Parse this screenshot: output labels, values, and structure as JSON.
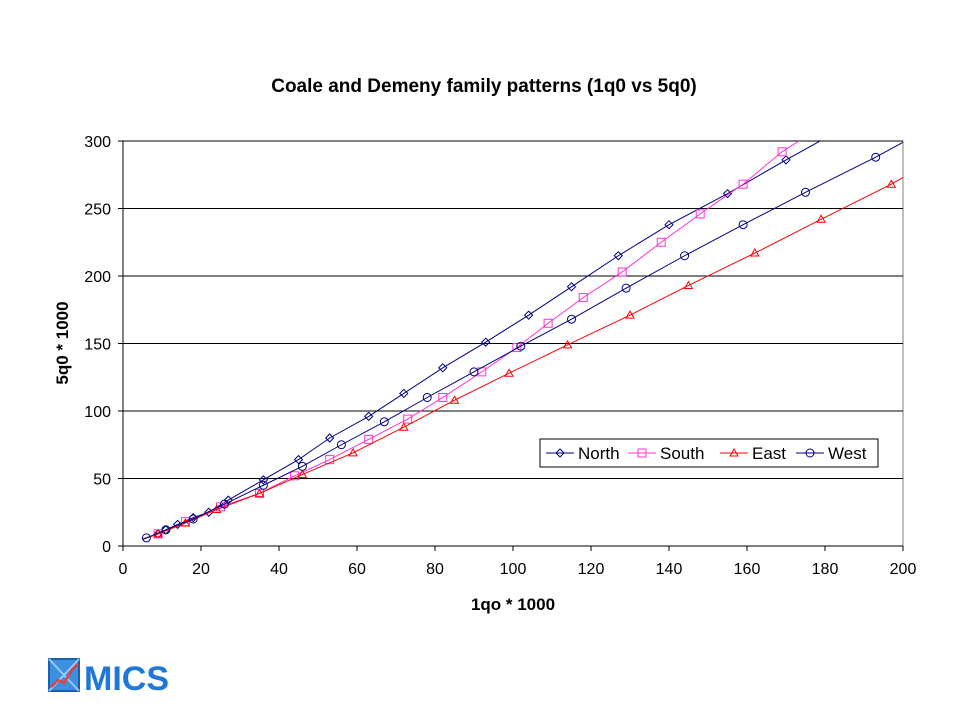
{
  "chart_data": {
    "type": "line",
    "title": "Coale and Demeny family patterns (1q0 vs 5q0)",
    "xlabel": "1qo  * 1000",
    "ylabel": "5q0 * 1000",
    "xlim": [
      0,
      200
    ],
    "ylim": [
      0,
      300
    ],
    "xticks": [
      "0",
      "20",
      "40",
      "60",
      "80",
      "100",
      "120",
      "140",
      "160",
      "180",
      "200"
    ],
    "yticks": [
      "0",
      "50",
      "100",
      "150",
      "200",
      "250",
      "300"
    ],
    "grid": "horizontal",
    "legend_position": "bottom-right",
    "series": [
      {
        "name": "North",
        "color": "#000080",
        "marker": "diamond",
        "x": [
          9,
          11,
          14,
          18,
          22,
          27,
          36,
          45,
          53,
          63,
          72,
          82,
          93,
          104,
          115,
          127,
          140,
          155,
          170
        ],
        "y": [
          9,
          12,
          16,
          21,
          25,
          34,
          49,
          64,
          80,
          96,
          113,
          132,
          151,
          171,
          192,
          215,
          238,
          261,
          286
        ],
        "line_x": [
          5,
          170,
          180
        ],
        "line_y": [
          5,
          286,
          302
        ]
      },
      {
        "name": "South",
        "color": "#ff33cc",
        "marker": "square",
        "x": [
          9,
          16,
          25,
          35,
          44,
          53,
          63,
          73,
          82,
          92,
          101,
          109,
          118,
          128,
          138,
          148,
          159,
          169
        ],
        "y": [
          9,
          18,
          29,
          39,
          52,
          64,
          79,
          94,
          110,
          129,
          147,
          165,
          184,
          203,
          225,
          246,
          268,
          292
        ],
        "line_x": [
          5,
          169,
          176
        ],
        "line_y": [
          5,
          292,
          305
        ]
      },
      {
        "name": "East",
        "color": "#ff0000",
        "marker": "triangle",
        "x": [
          9,
          16,
          24,
          35,
          46,
          59,
          72,
          85,
          99,
          114,
          130,
          145,
          162,
          179,
          197
        ],
        "y": [
          9,
          17,
          27,
          39,
          53,
          69,
          88,
          108,
          128,
          149,
          171,
          193,
          217,
          242,
          268
        ],
        "line_x": [
          5,
          197,
          200
        ],
        "line_y": [
          5,
          268,
          273
        ]
      },
      {
        "name": "West",
        "color": "#000080",
        "marker": "circle",
        "x": [
          6,
          11,
          18,
          26,
          36,
          46,
          56,
          67,
          78,
          90,
          102,
          115,
          129,
          144,
          159,
          175,
          193
        ],
        "y": [
          6,
          12,
          20,
          31,
          45,
          59,
          75,
          92,
          110,
          129,
          148,
          168,
          191,
          215,
          238,
          262,
          288
        ],
        "line_x": [
          5,
          193,
          200
        ],
        "line_y": [
          5,
          288,
          299
        ]
      }
    ]
  },
  "logo": {
    "text": "MICS",
    "icon": "chart-logo-icon",
    "color": "#1e78d8"
  }
}
